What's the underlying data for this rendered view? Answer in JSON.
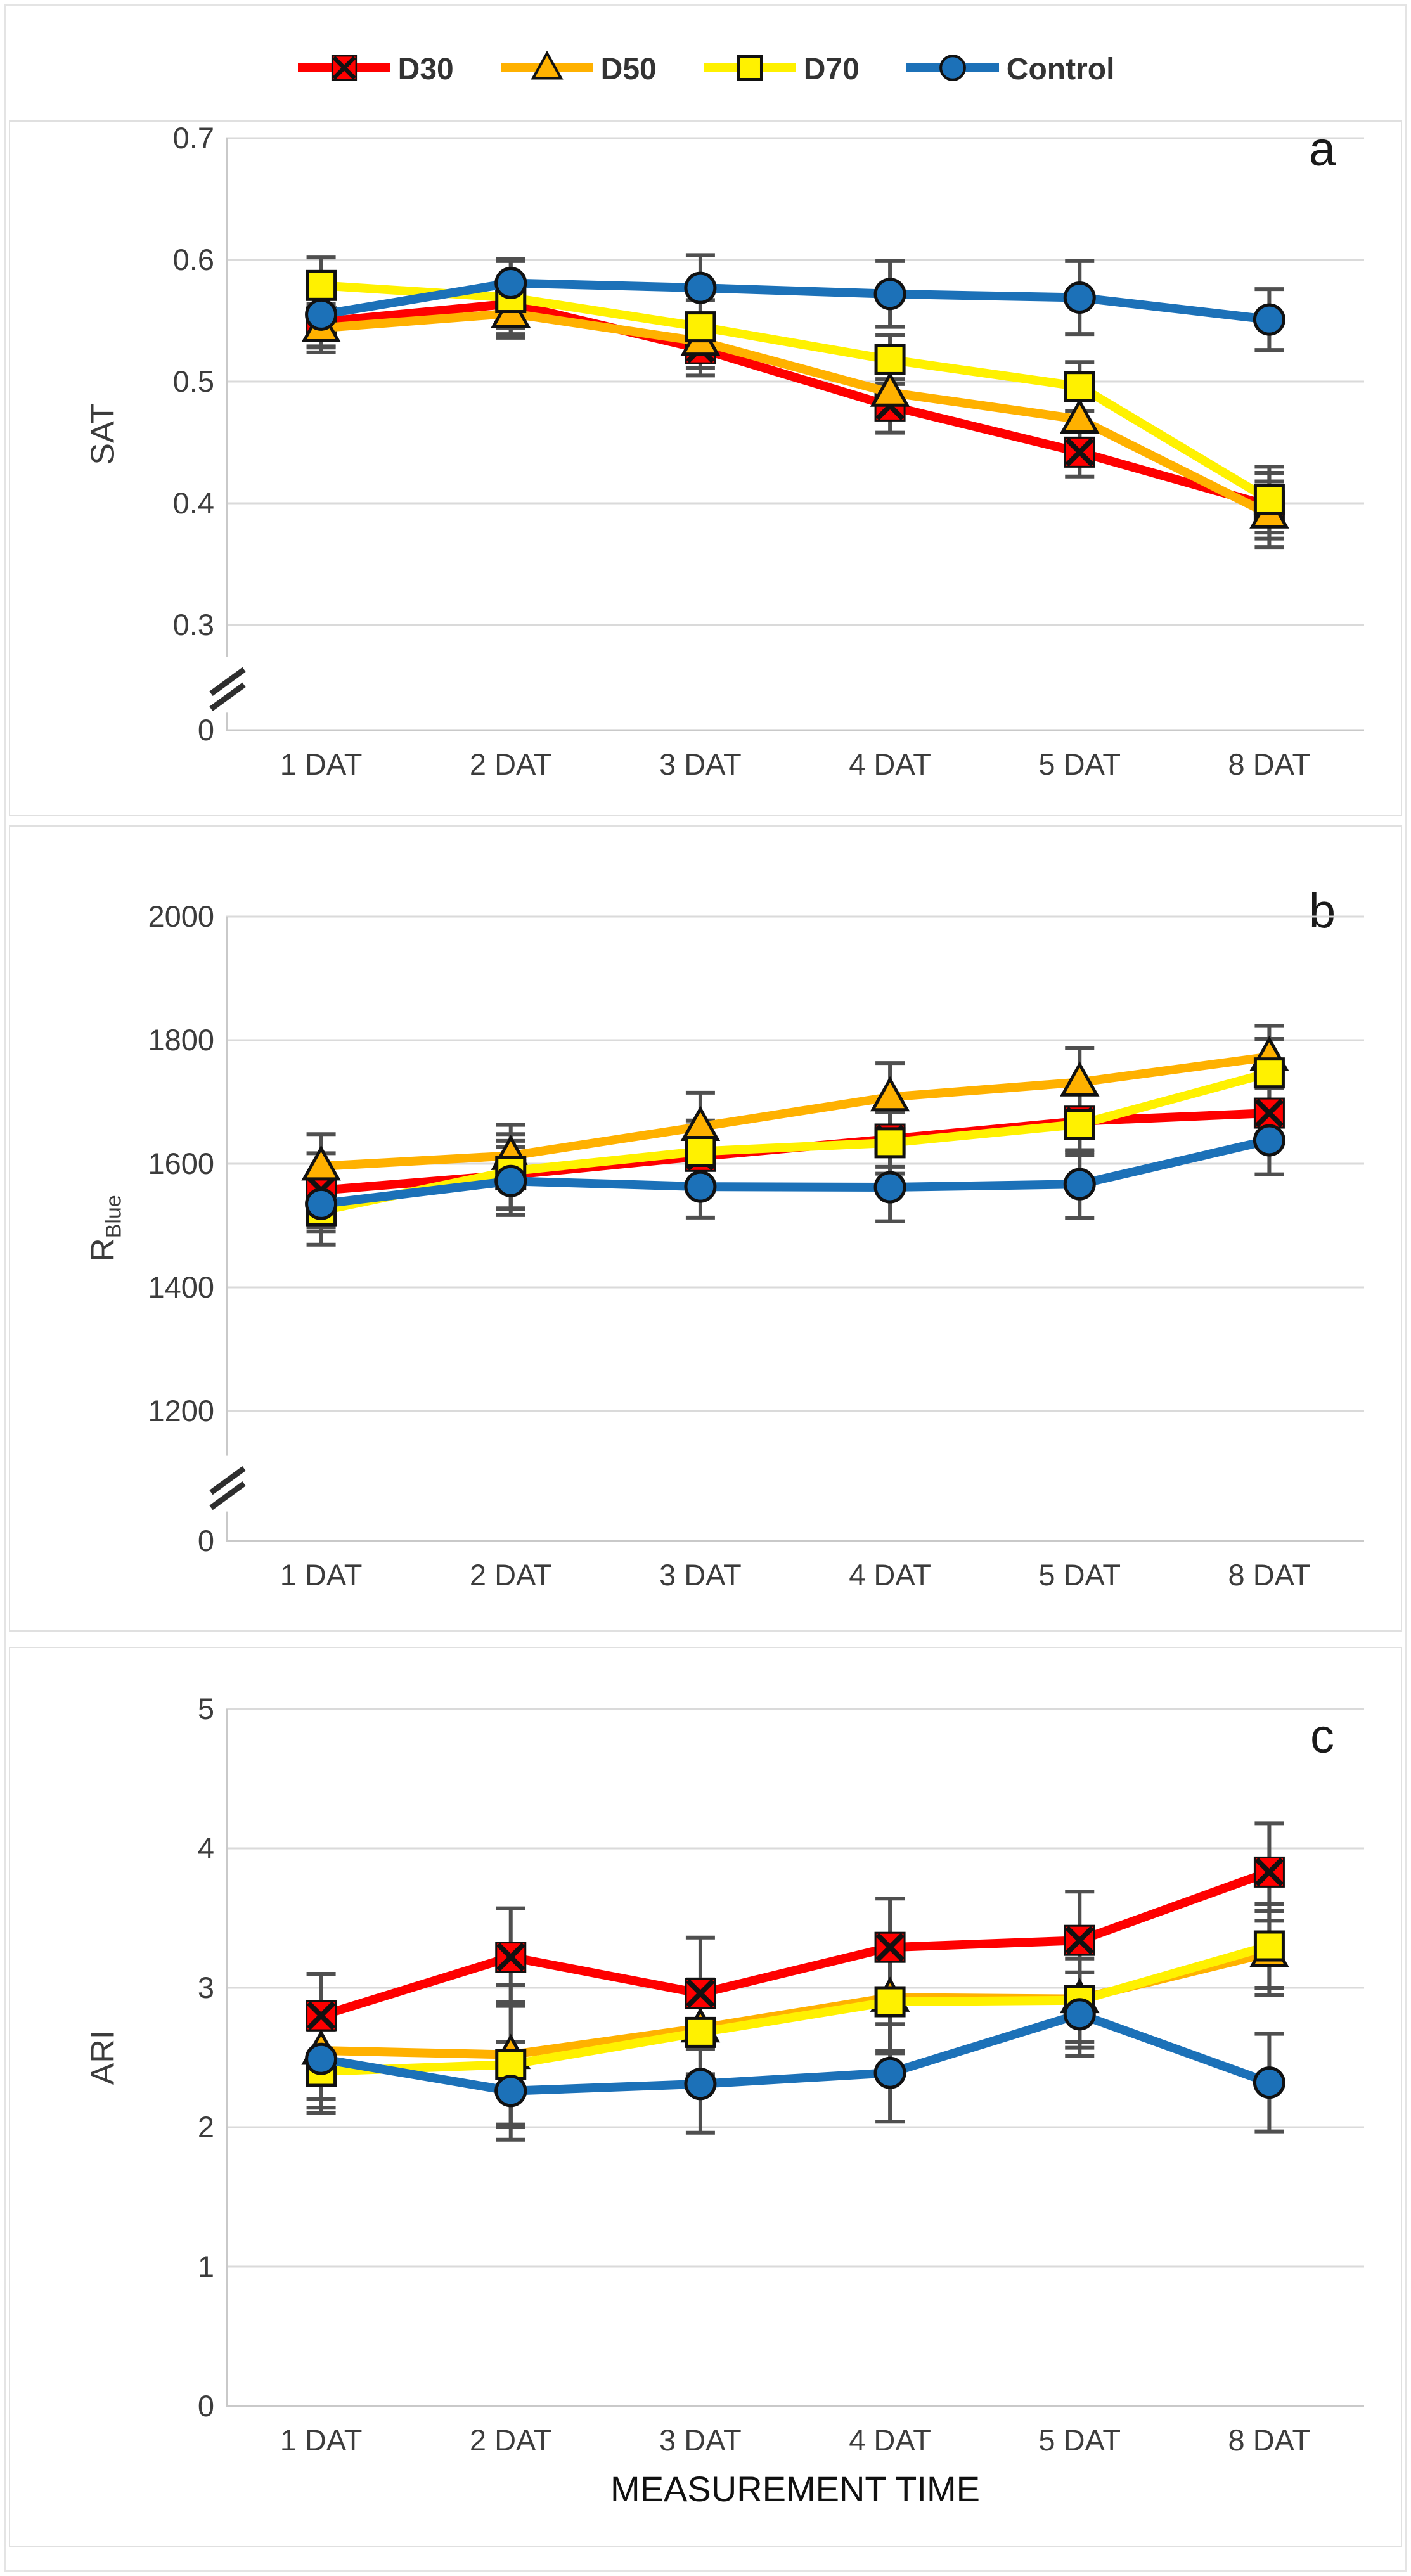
{
  "x_axis_title": "MEASUREMENT TIME",
  "legend": {
    "items": [
      {
        "label": "D30",
        "color": "#FE0000",
        "marker": "x-square"
      },
      {
        "label": "D50",
        "color": "#FFB100",
        "marker": "triangle"
      },
      {
        "label": "D70",
        "color": "#FFF100",
        "marker": "square"
      },
      {
        "label": "Control",
        "color": "#1C71B8",
        "marker": "circle"
      }
    ]
  },
  "style_colors": {
    "grid": "#DADADA",
    "axis": "#C9C9C9",
    "error_bar": "#4F4F4F",
    "marker_outline": "#111111"
  },
  "chart_data": [
    {
      "type": "line",
      "panel_letter": "a",
      "ylabel_main": "SAT",
      "ylabel_sub": "",
      "xlabel": "",
      "categories": [
        "1 DAT",
        "2 DAT",
        "3 DAT",
        "4 DAT",
        "5 DAT",
        "8 DAT"
      ],
      "y_tick_labels": [
        "0.7",
        "0.6",
        "0.5",
        "0.4",
        "0.3",
        "0"
      ],
      "y_axis": {
        "top": 0.7,
        "unit": 0.1
      },
      "ylim": [
        0,
        0.7
      ],
      "axis_break": true,
      "grid": true,
      "legend_position": "top",
      "series": [
        {
          "name": "D30",
          "color": "#FE0000",
          "marker": "x-square",
          "values": [
            0.549,
            0.564,
            0.527,
            0.48,
            0.442,
            0.398
          ],
          "errors": [
            0.02,
            0.02,
            0.022,
            0.022,
            0.02,
            0.027
          ]
        },
        {
          "name": "D50",
          "color": "#FFB100",
          "marker": "triangle",
          "values": [
            0.544,
            0.556,
            0.533,
            0.491,
            0.469,
            0.391
          ],
          "errors": [
            0.02,
            0.02,
            0.022,
            0.02,
            0.02,
            0.027
          ]
        },
        {
          "name": "D70",
          "color": "#FFF100",
          "marker": "square",
          "values": [
            0.579,
            0.569,
            0.545,
            0.518,
            0.496,
            0.403
          ],
          "errors": [
            0.023,
            0.03,
            0.022,
            0.02,
            0.02,
            0.027
          ]
        },
        {
          "name": "Control",
          "color": "#1C71B8",
          "marker": "circle",
          "values": [
            0.555,
            0.581,
            0.577,
            0.572,
            0.569,
            0.551
          ],
          "errors": [
            0.027,
            0.02,
            0.027,
            0.027,
            0.03,
            0.025
          ]
        }
      ]
    },
    {
      "type": "line",
      "panel_letter": "b",
      "ylabel_main": "R",
      "ylabel_sub": "Blue",
      "xlabel": "",
      "categories": [
        "1 DAT",
        "2 DAT",
        "3 DAT",
        "4 DAT",
        "5 DAT",
        "8 DAT"
      ],
      "y_tick_labels": [
        "2000",
        "1800",
        "1600",
        "1400",
        "1200",
        "0"
      ],
      "y_axis": {
        "top": 2000,
        "unit": 200
      },
      "ylim": [
        0,
        2000
      ],
      "axis_break": true,
      "grid": true,
      "legend_position": "top",
      "series": [
        {
          "name": "D30",
          "color": "#FE0000",
          "marker": "x-square",
          "values": [
            1557,
            1582,
            1612,
            1640,
            1669,
            1682
          ],
          "errors": [
            60,
            55,
            50,
            45,
            50,
            45
          ]
        },
        {
          "name": "D50",
          "color": "#FFB100",
          "marker": "triangle",
          "values": [
            1596,
            1613,
            1660,
            1708,
            1732,
            1773
          ],
          "errors": [
            52,
            50,
            55,
            55,
            55,
            50
          ]
        },
        {
          "name": "D70",
          "color": "#FFF100",
          "marker": "square",
          "values": [
            1524,
            1588,
            1620,
            1634,
            1664,
            1747
          ],
          "errors": [
            55,
            60,
            50,
            50,
            50,
            55
          ]
        },
        {
          "name": "Control",
          "color": "#1C71B8",
          "marker": "circle",
          "values": [
            1535,
            1572,
            1563,
            1562,
            1567,
            1638
          ],
          "errors": [
            45,
            55,
            50,
            55,
            55,
            55
          ]
        }
      ]
    },
    {
      "type": "line",
      "panel_letter": "c",
      "ylabel_main": "ARI",
      "ylabel_sub": "",
      "xlabel": "MEASUREMENT TIME",
      "categories": [
        "1 DAT",
        "2 DAT",
        "3 DAT",
        "4 DAT",
        "5 DAT",
        "8 DAT"
      ],
      "y_tick_labels": [
        "5",
        "4",
        "3",
        "2",
        "1",
        "0"
      ],
      "y_axis": {
        "top": 5,
        "unit": 1
      },
      "ylim": [
        0,
        5
      ],
      "axis_break": false,
      "grid": true,
      "legend_position": "top",
      "series": [
        {
          "name": "D30",
          "color": "#FE0000",
          "marker": "x-square",
          "values": [
            2.8,
            3.22,
            2.96,
            3.29,
            3.34,
            3.83
          ],
          "errors": [
            0.3,
            0.35,
            0.4,
            0.35,
            0.35,
            0.35
          ]
        },
        {
          "name": "D50",
          "color": "#FFB100",
          "marker": "triangle",
          "values": [
            2.55,
            2.52,
            2.71,
            2.93,
            2.92,
            3.25
          ],
          "errors": [
            0.35,
            0.5,
            0.35,
            0.4,
            0.35,
            0.3
          ]
        },
        {
          "name": "D70",
          "color": "#FFF100",
          "marker": "square",
          "values": [
            2.4,
            2.45,
            2.68,
            2.9,
            2.91,
            3.3
          ],
          "errors": [
            0.3,
            0.45,
            0.3,
            0.35,
            0.3,
            0.3
          ]
        },
        {
          "name": "Control",
          "color": "#1C71B8",
          "marker": "circle",
          "values": [
            2.49,
            2.26,
            2.31,
            2.39,
            2.81,
            2.32
          ],
          "errors": [
            0.35,
            0.35,
            0.35,
            0.35,
            0.3,
            0.35
          ]
        }
      ]
    }
  ]
}
